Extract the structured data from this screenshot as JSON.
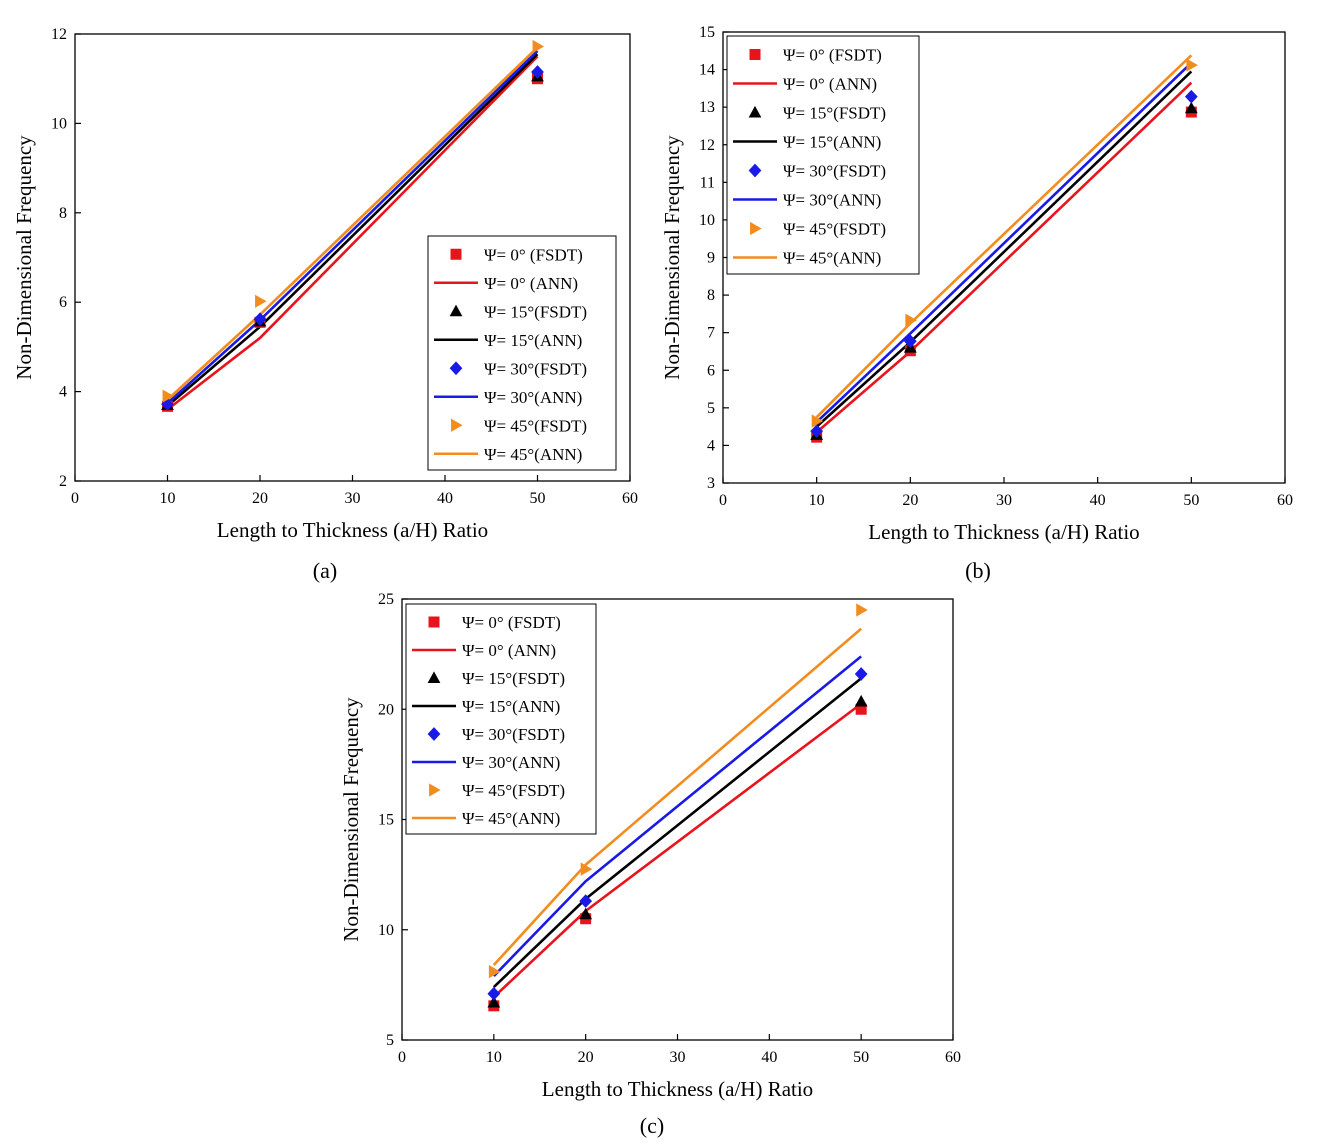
{
  "chart_data": [
    {
      "type": "line",
      "panel_caption": "(a)",
      "xlabel": "Length to Thickness (a/H) Ratio",
      "ylabel": "Non-Dimensional Frequency",
      "xlim": [
        0,
        60
      ],
      "ylim": [
        2,
        12
      ],
      "x_ticks": [
        0,
        10,
        20,
        30,
        40,
        50,
        60
      ],
      "y_ticks": [
        2,
        4,
        6,
        8,
        10,
        12
      ],
      "grid": false,
      "legend_position": "bottom-right",
      "x": [
        10,
        20,
        50
      ],
      "series": [
        {
          "name": "Ψ= 0°  (FSDT)",
          "kind": "marker",
          "marker": "square",
          "color": "#e8141c",
          "values": [
            3.67,
            5.55,
            11.0
          ]
        },
        {
          "name": "Ψ= 0°  (ANN)",
          "kind": "line",
          "color": "#e8141c",
          "values": [
            3.6,
            5.2,
            11.5
          ]
        },
        {
          "name": "Ψ= 15°(FSDT)",
          "kind": "marker",
          "marker": "triangle",
          "color": "#000000",
          "values": [
            3.7,
            5.57,
            11.05
          ]
        },
        {
          "name": "Ψ= 15°(ANN)",
          "kind": "line",
          "color": "#000000",
          "values": [
            3.68,
            5.45,
            11.55
          ]
        },
        {
          "name": "Ψ= 30°(FSDT)",
          "kind": "marker",
          "marker": "diamond",
          "color": "#1a1ae6",
          "values": [
            3.72,
            5.62,
            11.15
          ]
        },
        {
          "name": "Ψ= 30°(ANN)",
          "kind": "line",
          "color": "#1a1ae6",
          "values": [
            3.74,
            5.6,
            11.62
          ]
        },
        {
          "name": "Ψ= 45°(FSDT)",
          "kind": "marker",
          "marker": "triangle-right",
          "color": "#f28c1e",
          "values": [
            3.9,
            6.02,
            11.72
          ]
        },
        {
          "name": "Ψ= 45°(ANN)",
          "kind": "line",
          "color": "#f28c1e",
          "values": [
            3.82,
            5.72,
            11.7
          ]
        }
      ]
    },
    {
      "type": "line",
      "panel_caption": "(b)",
      "xlabel": "Length to Thickness (a/H) Ratio",
      "ylabel": "Non-Dimensional Frequency",
      "xlim": [
        0,
        60
      ],
      "ylim": [
        3,
        15
      ],
      "x_ticks": [
        0,
        10,
        20,
        30,
        40,
        50,
        60
      ],
      "y_ticks": [
        3,
        4,
        5,
        6,
        7,
        8,
        9,
        10,
        11,
        12,
        13,
        14,
        15
      ],
      "grid": false,
      "legend_position": "top-left",
      "x": [
        10,
        20,
        50
      ],
      "series": [
        {
          "name": "Ψ= 0°  (FSDT)",
          "kind": "marker",
          "marker": "square",
          "color": "#e8141c",
          "values": [
            4.22,
            6.52,
            12.87
          ]
        },
        {
          "name": "Ψ= 0°  (ANN)",
          "kind": "line",
          "color": "#e8141c",
          "values": [
            4.35,
            6.5,
            13.65
          ]
        },
        {
          "name": "Ψ= 15°(FSDT)",
          "kind": "marker",
          "marker": "triangle",
          "color": "#000000",
          "values": [
            4.28,
            6.6,
            12.97
          ]
        },
        {
          "name": "Ψ= 15°(ANN)",
          "kind": "line",
          "color": "#000000",
          "values": [
            4.5,
            6.75,
            13.95
          ]
        },
        {
          "name": "Ψ= 30°(FSDT)",
          "kind": "marker",
          "marker": "diamond",
          "color": "#1a1ae6",
          "values": [
            4.38,
            6.77,
            13.28
          ]
        },
        {
          "name": "Ψ= 30°(ANN)",
          "kind": "line",
          "color": "#1a1ae6",
          "values": [
            4.62,
            6.98,
            14.18
          ]
        },
        {
          "name": "Ψ= 45°(FSDT)",
          "kind": "marker",
          "marker": "triangle-right",
          "color": "#f28c1e",
          "values": [
            4.65,
            7.33,
            14.12
          ]
        },
        {
          "name": "Ψ= 45°(ANN)",
          "kind": "line",
          "color": "#f28c1e",
          "values": [
            4.75,
            7.25,
            14.38
          ]
        }
      ]
    },
    {
      "type": "line",
      "panel_caption": "(c)",
      "xlabel": "Length to Thickness (a/H) Ratio",
      "ylabel": "Non-Dimensional Frequency",
      "xlim": [
        0,
        60
      ],
      "ylim": [
        5,
        25
      ],
      "x_ticks": [
        0,
        10,
        20,
        30,
        40,
        50,
        60
      ],
      "y_ticks": [
        5,
        10,
        15,
        20,
        25
      ],
      "grid": false,
      "legend_position": "top-left",
      "x": [
        10,
        20,
        50
      ],
      "series": [
        {
          "name": "Ψ= 0°  (FSDT)",
          "kind": "marker",
          "marker": "square",
          "color": "#e8141c",
          "values": [
            6.55,
            10.5,
            20.0
          ]
        },
        {
          "name": "Ψ= 0°  (ANN)",
          "kind": "line",
          "color": "#e8141c",
          "values": [
            6.95,
            10.85,
            20.25
          ]
        },
        {
          "name": "Ψ= 15°(FSDT)",
          "kind": "marker",
          "marker": "triangle",
          "color": "#000000",
          "values": [
            6.7,
            10.7,
            20.35
          ]
        },
        {
          "name": "Ψ= 15°(ANN)",
          "kind": "line",
          "color": "#000000",
          "values": [
            7.4,
            11.4,
            21.4
          ]
        },
        {
          "name": "Ψ= 30°(FSDT)",
          "kind": "marker",
          "marker": "diamond",
          "color": "#1a1ae6",
          "values": [
            7.1,
            11.3,
            21.6
          ]
        },
        {
          "name": "Ψ= 30°(ANN)",
          "kind": "line",
          "color": "#1a1ae6",
          "values": [
            7.9,
            12.2,
            22.4
          ]
        },
        {
          "name": "Ψ= 45°(FSDT)",
          "kind": "marker",
          "marker": "triangle-right",
          "color": "#f28c1e",
          "values": [
            8.1,
            12.75,
            24.5
          ]
        },
        {
          "name": "Ψ= 45°(ANN)",
          "kind": "line",
          "color": "#f28c1e",
          "values": [
            8.4,
            12.95,
            23.65
          ]
        }
      ]
    }
  ]
}
